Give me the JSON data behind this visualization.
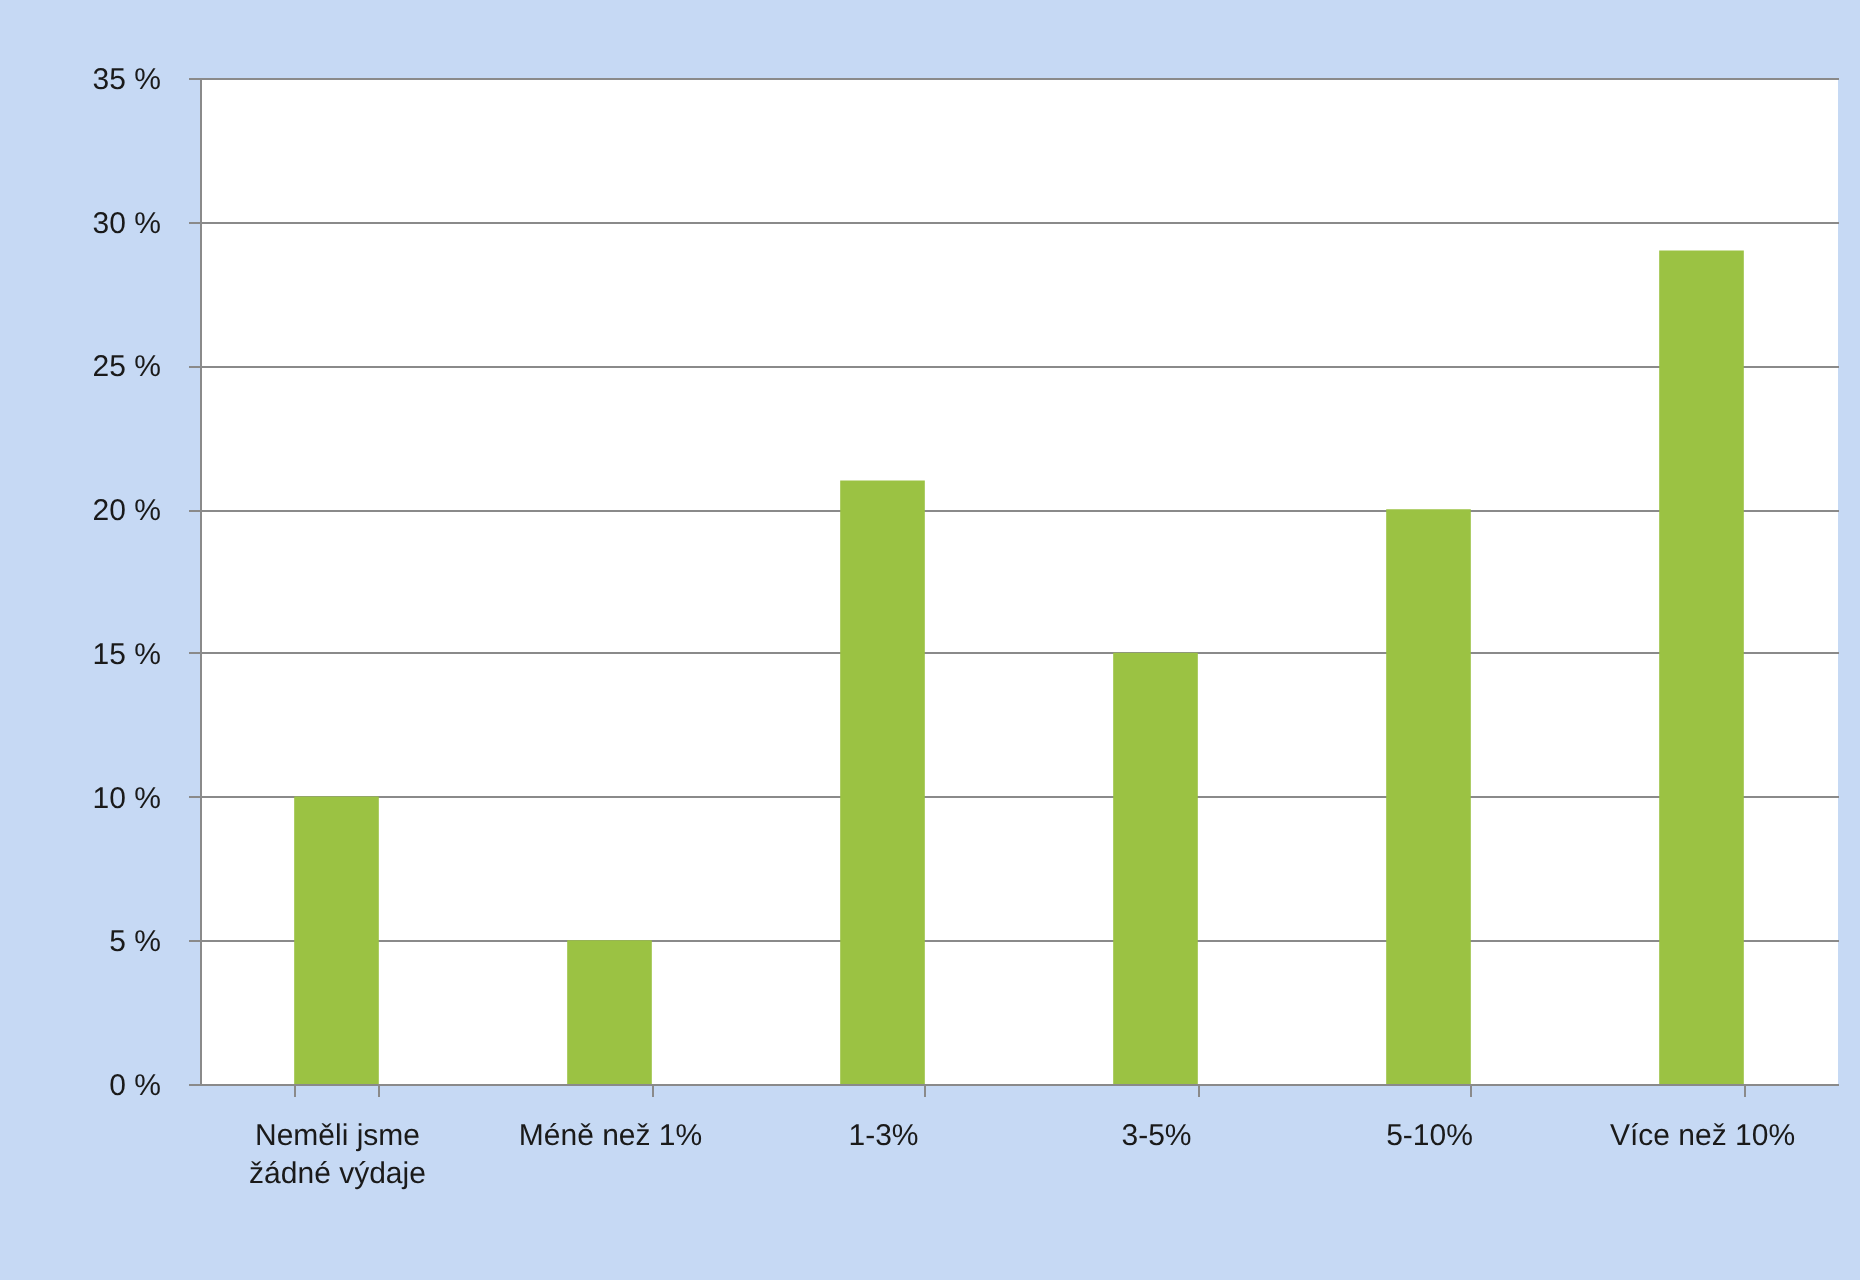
{
  "chart_data": {
    "type": "bar",
    "categories": [
      "Neměli jsme žádné výdaje",
      "Méně než 1%",
      "1-3%",
      "3-5%",
      "5-10%",
      "Více než 10%"
    ],
    "values": [
      10,
      5,
      21,
      15,
      20,
      29
    ],
    "color": "#9bc243",
    "ylim": [
      0,
      35
    ],
    "yticks": [
      {
        "value": 0,
        "label": "0 %"
      },
      {
        "value": 5,
        "label": "5 %"
      },
      {
        "value": 10,
        "label": "10 %"
      },
      {
        "value": 15,
        "label": "15 %"
      },
      {
        "value": 20,
        "label": "20 %"
      },
      {
        "value": 25,
        "label": "25 %"
      },
      {
        "value": 30,
        "label": "30 %"
      },
      {
        "value": 35,
        "label": "35 %"
      }
    ],
    "grid": "y"
  }
}
